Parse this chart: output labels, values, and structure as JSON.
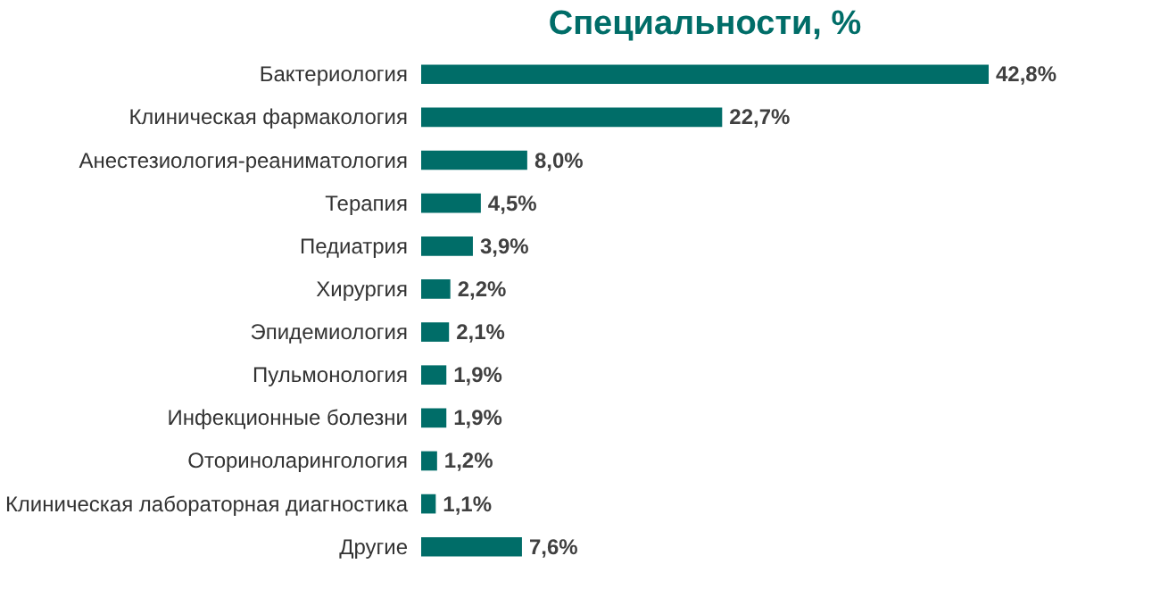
{
  "chart_data": {
    "type": "bar",
    "orientation": "horizontal",
    "title": "Специальности, %",
    "categories": [
      "Бактериология",
      "Клиническая фармакология",
      "Анестезиология-реаниматология",
      "Терапия",
      "Педиатрия",
      "Хирургия",
      "Эпидемиология",
      "Пульмонология",
      "Инфекционные болезни",
      "Оториноларингология",
      "Клиническая лабораторная диагностика",
      "Другие"
    ],
    "values": [
      42.8,
      22.7,
      8.0,
      4.5,
      3.9,
      2.2,
      2.1,
      1.9,
      1.9,
      1.2,
      1.1,
      7.6
    ],
    "value_labels": [
      "42,8%",
      "22,7%",
      "8,0%",
      "4,5%",
      "3,9%",
      "2,2%",
      "2,1%",
      "1,9%",
      "1,9%",
      "1,2%",
      "1,1%",
      "7,6%"
    ],
    "color": "#006d68"
  }
}
